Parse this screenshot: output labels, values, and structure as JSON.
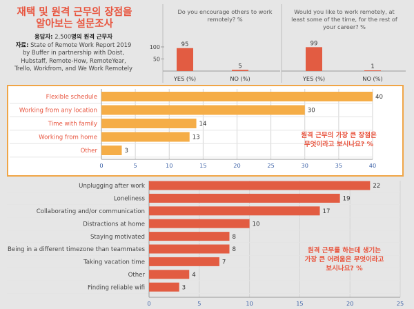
{
  "header": {
    "title_line1": "재택 및 원격 근무의 장점을",
    "title_line2": "알아보는 설문조사",
    "respondents_label": "응답자:",
    "respondents_value": "2,500",
    "respondents_suffix": "명의 원격 근무자",
    "source_label": "자료:",
    "source_line1": "State of Remote Work Report 2019",
    "source_line2": "by Buffer in partnership with Doist,",
    "source_line3": "Hubstaff, Remote-How, RemoteYear,",
    "source_line4": "Trello, Workfrom, and We Work Remotely"
  },
  "annotations": {
    "benefits_q_line1": "원격 근무의 가장 큰 장점은",
    "benefits_q_line2": "무엇이라고 보시나요? %",
    "difficulty_q_line1": "원격 근무를 하는데 생기는",
    "difficulty_q_line2": "가장 큰 어려움은 무엇이라고",
    "difficulty_q_line3": "보시나요? %"
  },
  "colors": {
    "orange": "#f5ad47",
    "red": "#e25c42",
    "text_orange": "#e8553f",
    "axis_text": "#3e63a8",
    "background": "#e6e6e6",
    "panel": "#ffffff"
  },
  "chart_data": [
    {
      "type": "bar",
      "title": "Do you encourage others to work remotely? %",
      "categories": [
        "YES (%)",
        "NO (%)"
      ],
      "values": [
        95,
        5
      ],
      "ylim": [
        0,
        100
      ],
      "yticks": [
        50,
        100
      ]
    },
    {
      "type": "bar",
      "title": "Would you like to work remotely, at least some of the time, for the rest of your career? %",
      "categories": [
        "YES (%)",
        "NO (%)"
      ],
      "values": [
        99,
        1
      ],
      "ylim": [
        0,
        100
      ]
    },
    {
      "type": "bar",
      "orientation": "horizontal",
      "title": "원격 근무의 가장 큰 장점은 무엇이라고 보시나요? %",
      "categories": [
        "Flexible schedule",
        "Working from any location",
        "Time with family",
        "Working from home",
        "Other"
      ],
      "values": [
        40,
        30,
        14,
        13,
        3
      ],
      "xlim": [
        0,
        40
      ],
      "xticks": [
        0,
        5,
        10,
        15,
        20,
        25,
        30,
        35,
        40
      ],
      "grid": true
    },
    {
      "type": "bar",
      "orientation": "horizontal",
      "title": "원격 근무를 하는데 생기는 가장 큰 어려움은 무엇이라고 보시나요? %",
      "categories": [
        "Unplugging after work",
        "Loneliness",
        "Collaborating and/or communication",
        "Distractions at home",
        "Staying motivated",
        "Being in a different timezone than teammates",
        "Taking vacation time",
        "Other",
        "Finding reliable wifi"
      ],
      "values": [
        22,
        19,
        17,
        10,
        8,
        8,
        7,
        4,
        3
      ],
      "xlim": [
        0,
        25
      ],
      "xticks": [
        0,
        5,
        10,
        15,
        20,
        25
      ],
      "grid": true
    }
  ]
}
